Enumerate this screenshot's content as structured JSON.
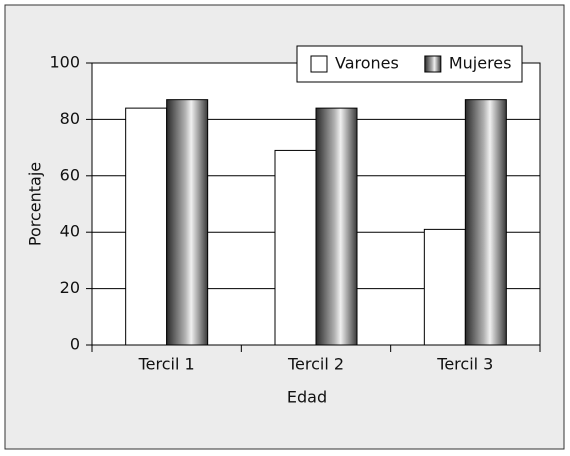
{
  "chart_data": {
    "type": "bar",
    "x_label": "Edad",
    "y_label": "Porcentaje",
    "categories": [
      "Tercil 1",
      "Tercil 2",
      "Tercil 3"
    ],
    "series": [
      {
        "name": "Varones",
        "color": "#ffffff",
        "values": [
          84,
          69,
          41
        ]
      },
      {
        "name": "Mujeres",
        "color": "#b0b0b0",
        "gradient": true,
        "values": [
          87,
          84,
          87
        ]
      }
    ],
    "ylim": [
      0,
      100
    ],
    "yticks": [
      0,
      20,
      40,
      60,
      80,
      100
    ],
    "grid": true,
    "legend": "top-right"
  }
}
